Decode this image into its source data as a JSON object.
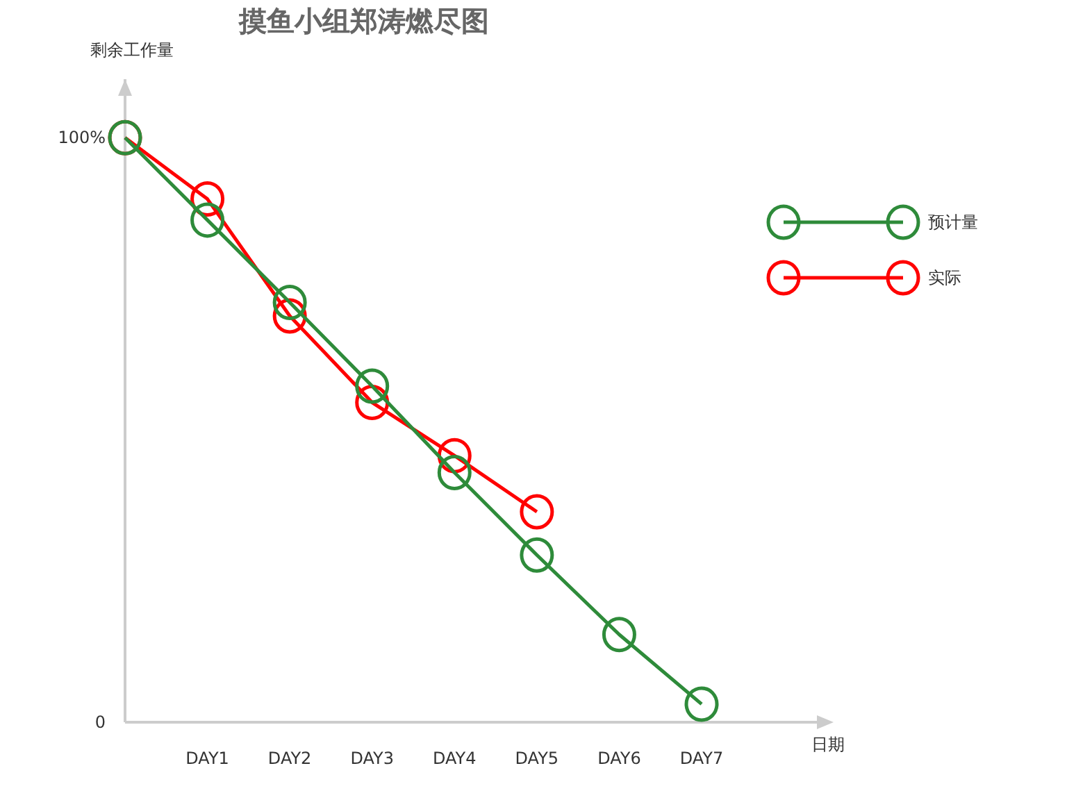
{
  "chart_data": {
    "type": "line",
    "title": "摸鱼小组郑涛燃尽图",
    "ylabel": "剩余工作量",
    "xlabel": "日期",
    "categories": [
      null,
      "DAY1",
      "DAY2",
      "DAY3",
      "DAY4",
      "DAY5",
      "DAY6",
      "DAY7"
    ],
    "series": [
      {
        "name": "预计量",
        "color": "#2e8b3a",
        "values": [
          100,
          85.9,
          71.8,
          57.5,
          42.7,
          28.6,
          15.0,
          3.1
        ]
      },
      {
        "name": "实际",
        "color": "#ff0000",
        "values": [
          100,
          89.5,
          69.5,
          54.7,
          45.6,
          36.0,
          null,
          null
        ]
      }
    ],
    "ylim": [
      0,
      110
    ],
    "yticks": [
      0,
      {
        "value": 100,
        "label": "100%"
      }
    ],
    "marker": "circle",
    "line_style": "solid",
    "legend": "top right"
  }
}
